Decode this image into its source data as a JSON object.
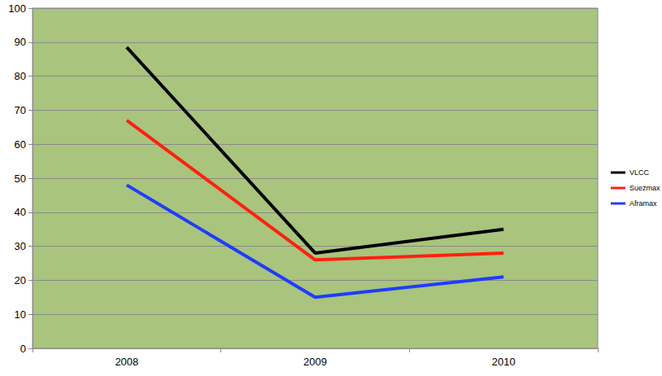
{
  "chart_data": {
    "type": "line",
    "categories": [
      "2008",
      "2009",
      "2010"
    ],
    "series": [
      {
        "name": "VLCC",
        "color": "#000000",
        "values": [
          88.5,
          28,
          35
        ]
      },
      {
        "name": "Suezmax",
        "color": "#ff2010",
        "values": [
          67,
          26,
          28
        ]
      },
      {
        "name": "Aframax",
        "color": "#1f3cff",
        "values": [
          48,
          15,
          21
        ]
      }
    ],
    "ylim": [
      0,
      100
    ],
    "yticks": [
      0,
      10,
      20,
      30,
      40,
      50,
      60,
      70,
      80,
      90,
      100
    ],
    "grid": true,
    "legend": "right"
  }
}
